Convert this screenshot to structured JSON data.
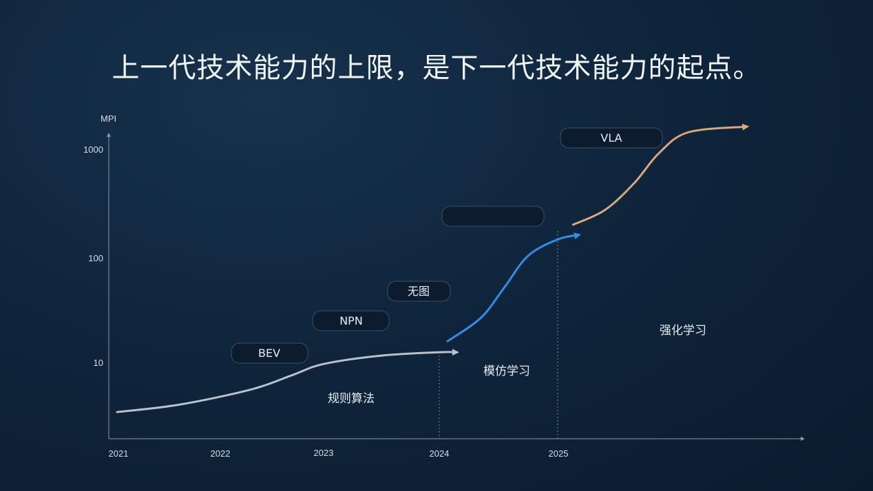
{
  "title": "上一代技术能力的上限，是下一代技术能力的起点。",
  "chart_data": {
    "type": "line",
    "ylabel": "MPI",
    "y_scale": "log",
    "y_ticks": [
      "1000",
      "100",
      "10"
    ],
    "x_ticks": [
      "2021",
      "2022",
      "2023",
      "2024",
      "2025"
    ],
    "dashed_year_markers": [
      "2024",
      "2025"
    ],
    "series": [
      {
        "color": "#b8c1cc",
        "x": [
          2021.0,
          2021.6,
          2022.3,
          2022.7,
          2023.0,
          2023.5,
          2024.0,
          2024.15
        ],
        "y": [
          3.4,
          4.0,
          5.6,
          7.7,
          9.8,
          11.8,
          12.7,
          12.7
        ]
      },
      {
        "color": "#2f8fe6",
        "x": [
          2024.07,
          2024.35,
          2024.55,
          2024.75,
          2025.0,
          2025.18
        ],
        "y": [
          16.2,
          27.0,
          53.0,
          106.0,
          150.0,
          165.0
        ]
      },
      {
        "color": "#d9a87c",
        "x": [
          2025.13,
          2025.4,
          2025.65,
          2025.85,
          2026.1,
          2026.6
        ],
        "y": [
          205.0,
          280.0,
          500.0,
          920.0,
          1450.0,
          1640.0
        ]
      }
    ],
    "pills": [
      "BEV",
      "NPN",
      "无图",
      "",
      "VLA"
    ],
    "phases": [
      "规则算法",
      "模仿学习",
      "强化学习"
    ]
  }
}
